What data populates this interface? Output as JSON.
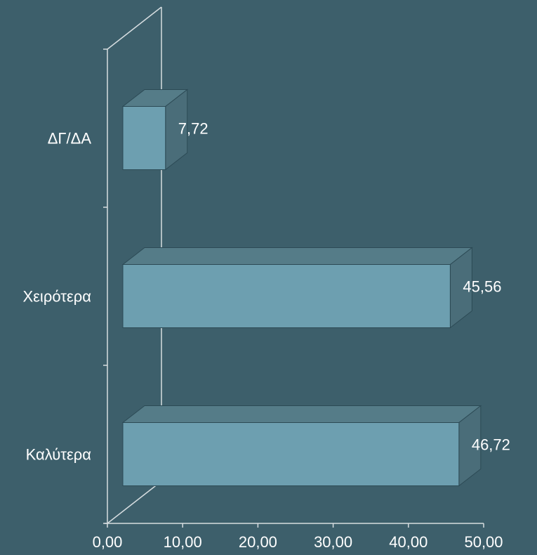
{
  "chart_data": {
    "type": "bar",
    "orientation": "horizontal",
    "style": "3d",
    "categories": [
      "ΔΓ/ΔΑ",
      "Χειρότερα",
      "Καλύτερα"
    ],
    "values": [
      7.72,
      45.56,
      46.72
    ],
    "value_labels": [
      "7,72",
      "45,56",
      "46,72"
    ],
    "xlim": [
      0,
      50
    ],
    "x_ticks": [
      0,
      10,
      20,
      30,
      40,
      50
    ],
    "x_tick_labels": [
      "0,00",
      "10,00",
      "20,00",
      "30,00",
      "40,00",
      "50,00"
    ],
    "title": "",
    "xlabel": "",
    "ylabel": "",
    "grid": false,
    "legend": "none",
    "colors": {
      "background": "#3d5f6b",
      "bar_front": "#6d9fb0",
      "bar_top": "#557c88",
      "bar_side": "#4a6d79",
      "bar_edge": "#2c4a55",
      "axis": "#d6dde0",
      "text": "#ffffff"
    }
  }
}
